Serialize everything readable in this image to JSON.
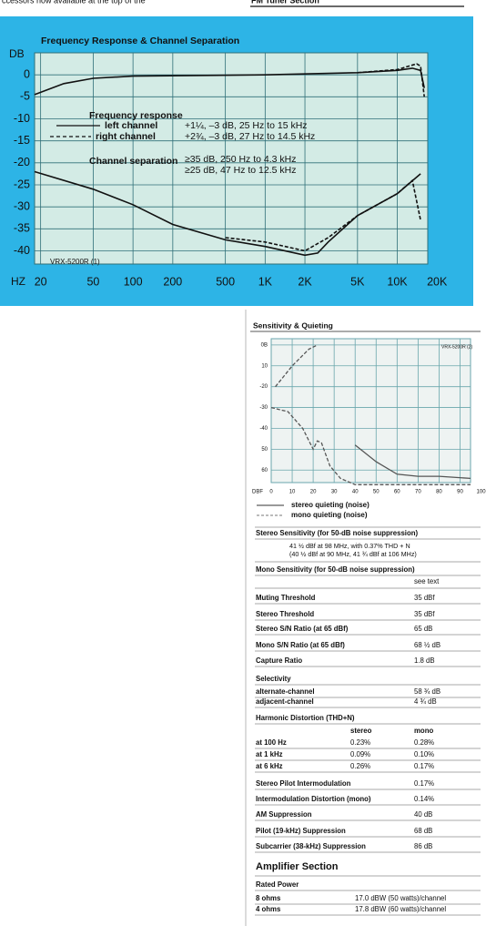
{
  "page_top": {
    "left_fragment": "ccessors now available at the top of the",
    "section_heading": "FM Tuner Section"
  },
  "freq_chart": {
    "title": "Frequency Response & Channel Separation",
    "ylabel": "DB",
    "xlabel": "HZ",
    "log_x": true,
    "xlim": [
      18,
      17000
    ],
    "ylim": [
      -43,
      5
    ],
    "xticks": [
      20,
      50,
      100,
      200,
      500,
      {
        "value": 1000,
        "label": "1K"
      },
      {
        "value": 2000,
        "label": "2K"
      },
      {
        "value": 5000,
        "label": "5K"
      },
      {
        "value": 10000,
        "label": "10K"
      },
      {
        "value": 20000,
        "label": "20K"
      }
    ],
    "yticks": [
      0,
      -5,
      -10,
      -15,
      -20,
      -25,
      -30,
      -35,
      -40
    ],
    "legend": {
      "fr_title": "Frequency response",
      "left": "left channel",
      "left_spec": "+1¼, –3 dB, 25 Hz to 15 kHz",
      "right": "right channel",
      "right_spec": "+2¾, –3 dB, 27 Hz to 14.5 kHz",
      "sep_title": "Channel separation",
      "sep_spec1": "≥35 dB, 250 Hz to 4.3 kHz",
      "sep_spec2": "≥25 dB, 47 Hz to 12.5 kHz"
    },
    "id_label": "VRX-5200R (1)",
    "curves": [
      {
        "dashed": false,
        "x": [
          18,
          30,
          50,
          100,
          1000,
          5000,
          10000,
          13000,
          15000,
          16000
        ],
        "y": [
          -4.5,
          -2,
          -0.8,
          -0.3,
          0,
          0.5,
          1,
          1.5,
          1,
          -3
        ]
      },
      {
        "dashed": true,
        "x": [
          5000,
          10000,
          14000,
          15000,
          16000
        ],
        "y": [
          0.5,
          1.2,
          2.5,
          2,
          -5
        ]
      },
      {
        "dashed": false,
        "x": [
          18,
          50,
          100,
          200,
          500,
          1000,
          2000,
          2500,
          3000,
          5000,
          10000,
          15000
        ],
        "y": [
          -22,
          -26,
          -29.5,
          -34,
          -37.5,
          -39,
          -41,
          -40.5,
          -38,
          -32,
          -27,
          -22.5
        ]
      },
      {
        "dashed": true,
        "x": [
          500,
          1000,
          2000,
          3000,
          5000,
          10000,
          13000,
          15000
        ],
        "y": [
          -37,
          -38,
          -40,
          -37,
          -32,
          -27,
          -24,
          -33
        ]
      }
    ]
  },
  "sens_chart": {
    "title": "Sensitivity & Quieting",
    "xlabel": "DBF",
    "id_label": "VRX-5200R (2)",
    "xlim": [
      0,
      95
    ],
    "ylim": [
      -66,
      3
    ],
    "xticks": [
      0,
      10,
      20,
      30,
      40,
      50,
      60,
      70,
      80,
      90,
      100
    ],
    "yticks": [
      {
        "value": 0,
        "label": "0B"
      },
      {
        "value": -10,
        "label": "10"
      },
      -20,
      -30,
      -40,
      {
        "value": -50,
        "label": "50"
      },
      {
        "value": -60,
        "label": "60"
      }
    ],
    "legend": {
      "stereo": "stereo quieting (noise)",
      "mono": "mono quieting (noise)"
    },
    "curves": [
      {
        "dashed": true,
        "x": [
          2,
          10,
          18,
          22
        ],
        "y": [
          -20,
          -10,
          -2,
          0
        ]
      },
      {
        "dashed": true,
        "x": [
          0,
          8,
          15,
          20,
          22,
          24,
          28,
          33,
          40,
          95
        ],
        "y": [
          -30,
          -32,
          -40,
          -50,
          -46,
          -47,
          -58,
          -64,
          -67,
          -67
        ]
      },
      {
        "dashed": false,
        "x": [
          40,
          50,
          60,
          70,
          80,
          95
        ],
        "y": [
          -48,
          -56,
          -62,
          -63,
          -63,
          -64
        ]
      }
    ]
  },
  "specs": {
    "stereo_sensitivity": {
      "label": "Stereo Sensitivity (for 50-dB noise suppression)",
      "lines": [
        "41 ½ dBf at 98 MHz, with 0.37% THD + N",
        "(40 ½ dBf at 90 MHz, 41 ¾ dBf at 106 MHz)"
      ]
    },
    "mono_sensitivity": {
      "label": "Mono Sensitivity (for 50-dB noise suppression)",
      "value": "see text"
    },
    "rows": [
      {
        "label": "Muting Threshold",
        "value": "35 dBf"
      },
      {
        "label": "Stereo Threshold",
        "value": "35 dBf"
      },
      {
        "label": "Stereo S/N Ratio (at 65 dBf)",
        "value": "65 dB"
      },
      {
        "label": "Mono S/N Ratio (at 65 dBf)",
        "value": "68 ½ dB"
      },
      {
        "label": "Capture Ratio",
        "value": "1.8 dB"
      }
    ],
    "selectivity": {
      "label": "Selectivity",
      "rows": [
        {
          "label": "alternate-channel",
          "value": "58 ¾ dB"
        },
        {
          "label": "adjacent-channel",
          "value": "4 ¾ dB"
        }
      ]
    },
    "harmonic_distortion": {
      "label": "Harmonic Distortion (THD+N)",
      "columns": [
        "stereo",
        "mono"
      ],
      "rows": [
        {
          "label": "at 100 Hz",
          "values": [
            "0.23%",
            "0.28%"
          ]
        },
        {
          "label": "at 1 kHz",
          "values": [
            "0.09%",
            "0.10%"
          ]
        },
        {
          "label": "at 6 kHz",
          "values": [
            "0.26%",
            "0.17%"
          ]
        }
      ]
    },
    "rows2": [
      {
        "label": "Stereo Pilot Intermodulation",
        "value": "0.17%"
      },
      {
        "label": "Intermodulation Distortion (mono)",
        "value": "0.14%"
      },
      {
        "label": "AM Suppression",
        "value": "40 dB"
      },
      {
        "label": "Pilot (19-kHz) Suppression",
        "value": "68 dB"
      },
      {
        "label": "Subcarrier (38-kHz) Suppression",
        "value": "86 dB"
      }
    ]
  },
  "amplifier_section": {
    "title": "Amplifier Section",
    "rated_power": {
      "label": "Rated Power",
      "rows": [
        {
          "label": "8 ohms",
          "value": "17.0 dBW (50 watts)/channel"
        },
        {
          "label": "4 ohms",
          "value": "17.8 dBW (60 watts)/channel"
        }
      ]
    }
  }
}
